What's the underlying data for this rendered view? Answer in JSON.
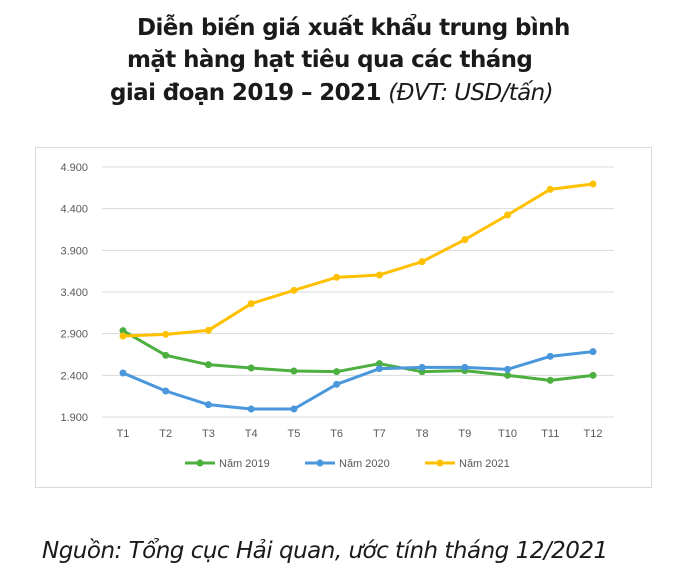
{
  "title": {
    "line1": "Diễn biến giá xuất khẩu trung bình",
    "line2": "mặt hàng hạt tiêu qua các tháng",
    "line3": "giai đoạn 2019 – 2021",
    "unit": "(ĐVT: USD/tấn)"
  },
  "source": "Nguồn: Tổng cục Hải quan, ước tính tháng 12/2021",
  "chart_data": {
    "type": "line",
    "categories": [
      "T1",
      "T2",
      "T3",
      "T4",
      "T5",
      "T6",
      "T7",
      "T8",
      "T9",
      "T10",
      "T11",
      "T12"
    ],
    "y_ticks": [
      "1.900",
      "2.400",
      "2.900",
      "3.400",
      "3.900",
      "4.400",
      "4.900"
    ],
    "ylim": [
      1900,
      4900
    ],
    "grid": true,
    "legend_position": "bottom",
    "series": [
      {
        "name": "Năm 2019",
        "color": "#4caf3f",
        "values": [
          2936,
          2640,
          2528,
          2488,
          2452,
          2444,
          2540,
          2444,
          2456,
          2400,
          2340,
          2400
        ]
      },
      {
        "name": "Năm 2020",
        "color": "#4a97dc",
        "values": [
          2428,
          2212,
          2048,
          1996,
          1996,
          2292,
          2480,
          2496,
          2496,
          2472,
          2628,
          2684
        ]
      },
      {
        "name": "Năm 2021",
        "color": "#ffc000",
        "values": [
          2872,
          2892,
          2940,
          3260,
          3420,
          3576,
          3604,
          3764,
          4028,
          4324,
          4632,
          4696
        ]
      }
    ]
  }
}
